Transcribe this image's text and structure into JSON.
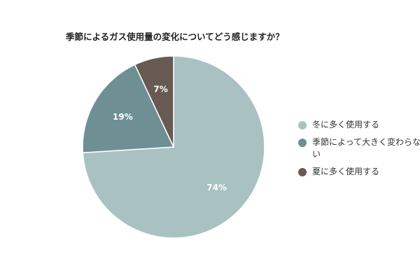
{
  "chart_data": {
    "type": "pie",
    "title": "季節によるガス使用量の変化についてどう感じますか？",
    "categories": [
      "冬に多く使用する",
      "季節によって大きく変わらない",
      "夏に多く使用する"
    ],
    "values": [
      74,
      19,
      7
    ],
    "data_labels": [
      "74%",
      "19%",
      "7%"
    ],
    "colors": [
      "#aac1c2",
      "#6e9095",
      "#675a53"
    ],
    "legend_position": "right",
    "start_angle": "12 o'clock",
    "direction": "clockwise"
  }
}
